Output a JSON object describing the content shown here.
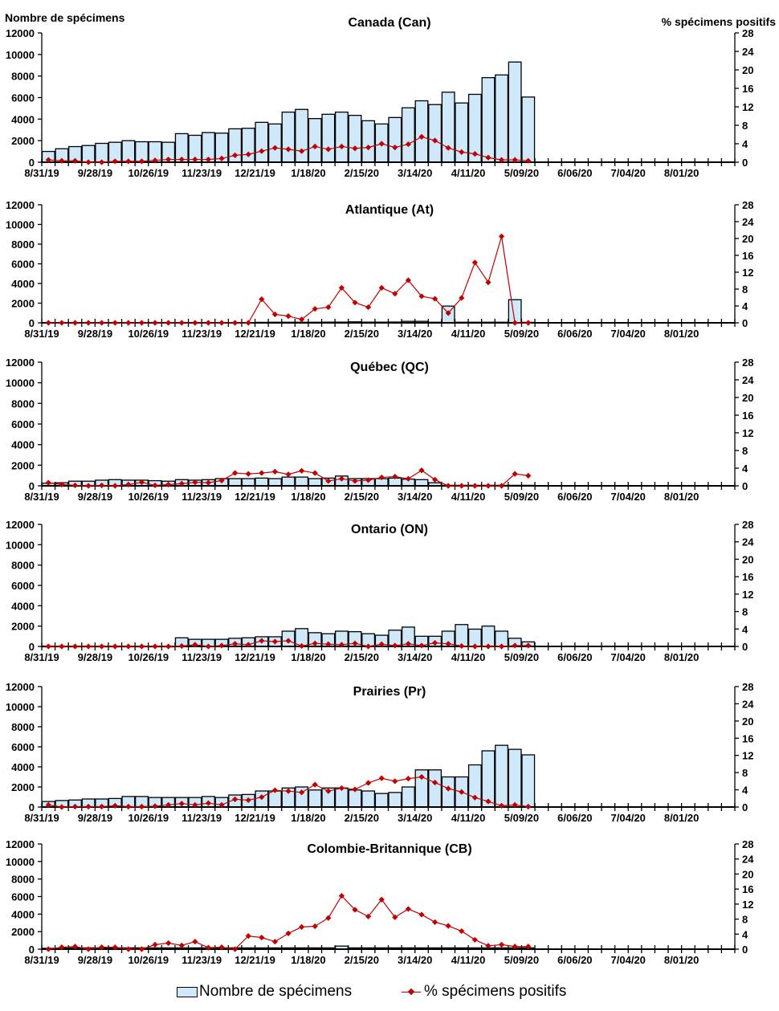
{
  "colors": {
    "bar_fill": "#cfe9fb",
    "bar_stroke": "#000000",
    "line": "#c00000",
    "axis": "#000000"
  },
  "left_axis_title": "Nombre de spécimens",
  "right_axis_title": "% spécimens positifs",
  "legend": {
    "bars_label": "Nombre de spécimens",
    "line_label": "% spécimens positifs"
  },
  "chart_data": [
    {
      "type": "bar",
      "title": "Canada (Can)",
      "xlabel": "",
      "ylabel": "Nombre de spécimens",
      "y2label": "% spécimens positifs",
      "ylim": [
        0,
        12000
      ],
      "y2lim": [
        0,
        28
      ],
      "yticks": [
        0,
        2000,
        4000,
        6000,
        8000,
        10000,
        12000
      ],
      "y2ticks": [
        0,
        4,
        8,
        12,
        16,
        20,
        24,
        28
      ],
      "xtick_labels": [
        "8/31/19",
        "9/28/19",
        "10/26/19",
        "11/23/19",
        "12/21/19",
        "1/18/20",
        "2/15/20",
        "3/14/20",
        "4/11/20",
        "5/09/20",
        "6/06/20",
        "7/04/20",
        "8/01/20"
      ],
      "n_weeks": 52,
      "series": [
        {
          "name": "Nombre de spécimens",
          "axis": "left",
          "kind": "bar",
          "values": [
            1000,
            1250,
            1450,
            1550,
            1750,
            1850,
            2000,
            1900,
            1900,
            1850,
            2650,
            2500,
            2750,
            2700,
            3100,
            3150,
            3700,
            3550,
            4650,
            4900,
            4050,
            4450,
            4650,
            4350,
            3850,
            3550,
            4150,
            5050,
            5700,
            5350,
            6500,
            5500,
            6300,
            7850,
            8100,
            9300,
            6050
          ]
        },
        {
          "name": "% spécimens positifs",
          "axis": "right",
          "kind": "line",
          "values": [
            0.5,
            0.3,
            0.3,
            0.0,
            0.0,
            0.2,
            0.2,
            0.2,
            0.4,
            0.6,
            0.6,
            0.6,
            0.6,
            0.8,
            1.5,
            1.7,
            2.4,
            3.1,
            2.8,
            2.4,
            3.4,
            2.8,
            3.4,
            3.0,
            3.2,
            4.0,
            3.2,
            3.9,
            5.5,
            4.7,
            3.1,
            2.2,
            1.8,
            1.0,
            0.5,
            0.5,
            0.3
          ]
        }
      ]
    },
    {
      "type": "bar",
      "title": "Atlantique (At)",
      "xlabel": "",
      "ylabel": "",
      "y2label": "",
      "ylim": [
        0,
        12000
      ],
      "y2lim": [
        0,
        28
      ],
      "yticks": [
        0,
        2000,
        4000,
        6000,
        8000,
        10000,
        12000
      ],
      "y2ticks": [
        0,
        4,
        8,
        12,
        16,
        20,
        24,
        28
      ],
      "xtick_labels": [
        "8/31/19",
        "9/28/19",
        "10/26/19",
        "11/23/19",
        "12/21/19",
        "1/18/20",
        "2/15/20",
        "3/14/20",
        "4/11/20",
        "5/09/20",
        "6/06/20",
        "7/04/20",
        "8/01/20"
      ],
      "n_weeks": 52,
      "series": [
        {
          "name": "Nombre de spécimens",
          "axis": "left",
          "kind": "bar",
          "values": [
            20,
            20,
            20,
            20,
            20,
            20,
            20,
            20,
            20,
            20,
            20,
            20,
            20,
            20,
            20,
            20,
            50,
            60,
            60,
            60,
            60,
            70,
            70,
            100,
            70,
            70,
            80,
            150,
            150,
            60,
            1700,
            60,
            60,
            60,
            60,
            2350,
            50
          ]
        },
        {
          "name": "% spécimens positifs",
          "axis": "right",
          "kind": "line",
          "values": [
            0,
            0,
            0,
            0,
            0,
            0,
            0,
            0,
            0,
            0,
            0,
            0,
            0,
            0,
            0,
            0,
            5.6,
            2.0,
            1.6,
            0.8,
            3.3,
            3.7,
            8.3,
            4.8,
            3.7,
            8.3,
            6.9,
            10.1,
            6.3,
            5.7,
            2.3,
            5.9,
            14.3,
            9.6,
            20.5,
            0,
            0
          ]
        }
      ]
    },
    {
      "type": "bar",
      "title": "Québec (QC)",
      "xlabel": "",
      "ylabel": "",
      "y2label": "",
      "ylim": [
        0,
        12000
      ],
      "y2lim": [
        0,
        28
      ],
      "yticks": [
        0,
        2000,
        4000,
        6000,
        8000,
        10000,
        12000
      ],
      "y2ticks": [
        0,
        4,
        8,
        12,
        16,
        20,
        24,
        28
      ],
      "xtick_labels": [
        "8/31/19",
        "9/28/19",
        "10/26/19",
        "11/23/19",
        "12/21/19",
        "1/18/20",
        "2/15/20",
        "3/14/20",
        "4/11/20",
        "5/09/20",
        "6/06/20",
        "7/04/20",
        "8/01/20"
      ],
      "n_weeks": 52,
      "series": [
        {
          "name": "Nombre de spécimens",
          "axis": "left",
          "kind": "bar",
          "values": [
            250,
            300,
            450,
            450,
            550,
            600,
            550,
            550,
            500,
            450,
            600,
            550,
            600,
            700,
            700,
            700,
            750,
            700,
            850,
            850,
            700,
            750,
            950,
            700,
            700,
            700,
            750,
            650,
            600,
            300,
            50,
            50,
            50,
            50,
            50,
            50,
            50
          ]
        },
        {
          "name": "% spécimens positifs",
          "axis": "right",
          "kind": "line",
          "values": [
            0.7,
            0.3,
            0.1,
            0,
            0.1,
            0,
            0.3,
            0.8,
            0.1,
            0.3,
            0.5,
            0.8,
            0.7,
            1.2,
            2.9,
            2.7,
            2.9,
            3.2,
            2.6,
            3.4,
            2.9,
            1.1,
            1.6,
            1.1,
            1.3,
            1.9,
            2.1,
            1.6,
            3.5,
            1.4,
            0,
            0,
            0,
            0,
            0,
            2.7,
            2.3
          ]
        }
      ]
    },
    {
      "type": "bar",
      "title": "Ontario (ON)",
      "xlabel": "",
      "ylabel": "",
      "y2label": "",
      "ylim": [
        0,
        12000
      ],
      "y2lim": [
        0,
        28
      ],
      "yticks": [
        0,
        2000,
        4000,
        6000,
        8000,
        10000,
        12000
      ],
      "y2ticks": [
        0,
        4,
        8,
        12,
        16,
        20,
        24,
        28
      ],
      "xtick_labels": [
        "8/31/19",
        "9/28/19",
        "10/26/19",
        "11/23/19",
        "12/21/19",
        "1/18/20",
        "2/15/20",
        "3/14/20",
        "4/11/20",
        "5/09/20",
        "6/06/20",
        "7/04/20",
        "8/01/20"
      ],
      "n_weeks": 52,
      "series": [
        {
          "name": "Nombre de spécimens",
          "axis": "left",
          "kind": "bar",
          "values": [
            0,
            0,
            0,
            0,
            0,
            0,
            0,
            0,
            0,
            0,
            850,
            700,
            700,
            700,
            800,
            850,
            950,
            950,
            1500,
            1750,
            1350,
            1250,
            1500,
            1450,
            1250,
            1100,
            1600,
            1900,
            1000,
            1000,
            1500,
            2150,
            1700,
            2000,
            1500,
            800,
            450
          ]
        },
        {
          "name": "% spécimens positifs",
          "axis": "right",
          "kind": "line",
          "values": [
            0,
            0,
            0,
            0,
            0,
            0,
            0,
            0,
            0,
            0,
            0.1,
            0.4,
            0,
            0.2,
            0.6,
            0.4,
            1.3,
            1.1,
            1.3,
            0.1,
            0.7,
            0.5,
            0.4,
            0.7,
            0,
            0.5,
            0.2,
            0.6,
            0.2,
            0.8,
            0.6,
            0.1,
            0,
            0,
            0,
            0.2,
            0.2
          ]
        }
      ]
    },
    {
      "type": "bar",
      "title": "Prairies (Pr)",
      "xlabel": "",
      "ylabel": "",
      "y2label": "",
      "ylim": [
        0,
        12000
      ],
      "y2lim": [
        0,
        28
      ],
      "yticks": [
        0,
        2000,
        4000,
        6000,
        8000,
        10000,
        12000
      ],
      "y2ticks": [
        0,
        4,
        8,
        12,
        16,
        20,
        24,
        28
      ],
      "xtick_labels": [
        "8/31/19",
        "9/28/19",
        "10/26/19",
        "11/23/19",
        "12/21/19",
        "1/18/20",
        "2/15/20",
        "3/14/20",
        "4/11/20",
        "5/09/20",
        "6/06/20",
        "7/04/20",
        "8/01/20"
      ],
      "n_weeks": 52,
      "series": [
        {
          "name": "Nombre de spécimens",
          "axis": "left",
          "kind": "bar",
          "values": [
            550,
            650,
            700,
            800,
            800,
            850,
            1050,
            1050,
            950,
            950,
            950,
            950,
            1050,
            950,
            1200,
            1250,
            1600,
            1600,
            1900,
            2000,
            1700,
            1900,
            1900,
            1700,
            1600,
            1350,
            1450,
            2000,
            3700,
            3700,
            3000,
            3000,
            4200,
            5600,
            6150,
            5750,
            5200
          ]
        },
        {
          "name": "% spécimens positifs",
          "axis": "right",
          "kind": "line",
          "values": [
            0.5,
            0,
            0.1,
            0.1,
            0.1,
            0.3,
            0.1,
            0.1,
            0.2,
            0.5,
            0.8,
            0.5,
            0.9,
            0.5,
            1.8,
            1.6,
            2.3,
            3.9,
            3.7,
            3.4,
            5.2,
            3.7,
            4.4,
            4.1,
            5.6,
            6.7,
            6.0,
            6.6,
            7.0,
            5.7,
            4.3,
            3.5,
            2.2,
            1.3,
            0.3,
            0.5,
            0.1
          ]
        }
      ]
    },
    {
      "type": "bar",
      "title": "Colombie-Britannique (CB)",
      "xlabel": "",
      "ylabel": "",
      "y2label": "",
      "ylim": [
        0,
        12000
      ],
      "y2lim": [
        0,
        28
      ],
      "yticks": [
        0,
        2000,
        4000,
        6000,
        8000,
        10000,
        12000
      ],
      "y2ticks": [
        0,
        4,
        8,
        12,
        16,
        20,
        24,
        28
      ],
      "xtick_labels": [
        "8/31/19",
        "9/28/19",
        "10/26/19",
        "11/23/19",
        "12/21/19",
        "1/18/20",
        "2/15/20",
        "3/14/20",
        "4/11/20",
        "5/09/20",
        "6/06/20",
        "7/04/20",
        "8/01/20"
      ],
      "n_weeks": 52,
      "series": [
        {
          "name": "Nombre de spécimens",
          "axis": "left",
          "kind": "bar",
          "values": [
            100,
            120,
            150,
            150,
            150,
            150,
            150,
            150,
            150,
            150,
            150,
            150,
            150,
            150,
            150,
            150,
            150,
            150,
            150,
            150,
            150,
            150,
            350,
            150,
            150,
            150,
            150,
            150,
            150,
            150,
            150,
            150,
            150,
            150,
            150,
            150,
            150
          ]
        },
        {
          "name": "% spécimens positifs",
          "axis": "right",
          "kind": "line",
          "values": [
            0,
            0.5,
            0.7,
            0,
            0.5,
            0.5,
            0,
            0,
            1.2,
            1.6,
            1.0,
            2.0,
            0.4,
            0.5,
            0,
            3.5,
            3.1,
            2.0,
            4.2,
            5.9,
            6.1,
            8.3,
            14.2,
            10.5,
            8.7,
            13.2,
            8.5,
            10.7,
            9.2,
            7.2,
            6.2,
            4.8,
            2.5,
            0.9,
            1.2,
            0.7,
            0.7
          ]
        }
      ]
    }
  ]
}
